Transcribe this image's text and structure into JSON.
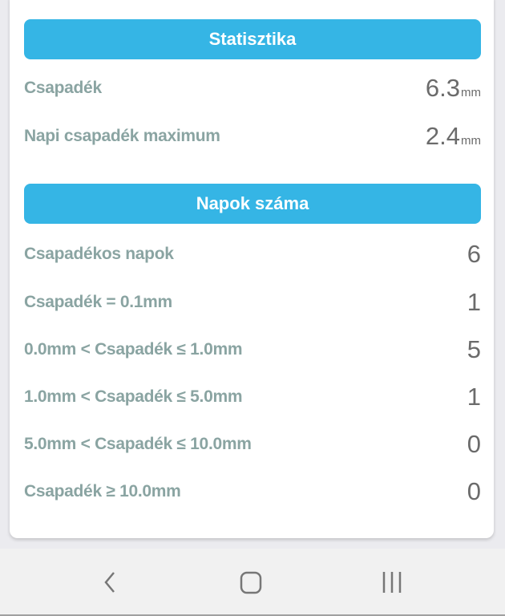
{
  "statistics": {
    "header": "Statisztika",
    "rows": [
      {
        "label": "Csapadék",
        "value": "6.3",
        "unit": "mm"
      },
      {
        "label": "Napi csapadék maximum",
        "value": "2.4",
        "unit": "mm"
      }
    ]
  },
  "days": {
    "header": "Napok száma",
    "rows": [
      {
        "label": "Csapadékos napok",
        "value": "6"
      },
      {
        "label": "Csapadék = 0.1mm",
        "value": "1"
      },
      {
        "label": "0.0mm < Csapadék ≤ 1.0mm",
        "value": "5"
      },
      {
        "label": "1.0mm < Csapadék ≤ 5.0mm",
        "value": "1"
      },
      {
        "label": "5.0mm < Csapadék ≤ 10.0mm",
        "value": "0"
      },
      {
        "label": "Csapadék ≥ 10.0mm",
        "value": "0"
      }
    ]
  },
  "navbar": {
    "icons": [
      "back-icon",
      "home-icon",
      "recent-apps-icon"
    ]
  },
  "colors": {
    "header_bg": "#35b5e5",
    "label": "#8aa4a2",
    "value": "#6b6b6b"
  }
}
